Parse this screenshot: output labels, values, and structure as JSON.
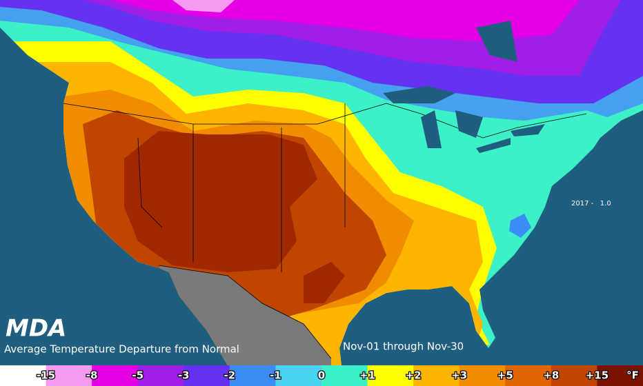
{
  "logo": "MDA",
  "title": "Average Temperature Departure from Normal",
  "period": "Nov-01 through Nov-30",
  "annotation": "2017 -   1.0",
  "legend": {
    "labels": [
      "-15",
      "-8",
      "-5",
      "-3",
      "-2",
      "-1",
      "0",
      "+1",
      "+2",
      "+3",
      "+5",
      "+8",
      "+15"
    ],
    "unit": "°F",
    "colors": [
      "#ffffff",
      "#f59af0",
      "#e600e6",
      "#a01ee6",
      "#6432f0",
      "#3c8cf5",
      "#46d2f0",
      "#3cf0c8",
      "#ffff00",
      "#ffb400",
      "#f08c00",
      "#e06400",
      "#c04600",
      "#7a1400"
    ]
  }
}
